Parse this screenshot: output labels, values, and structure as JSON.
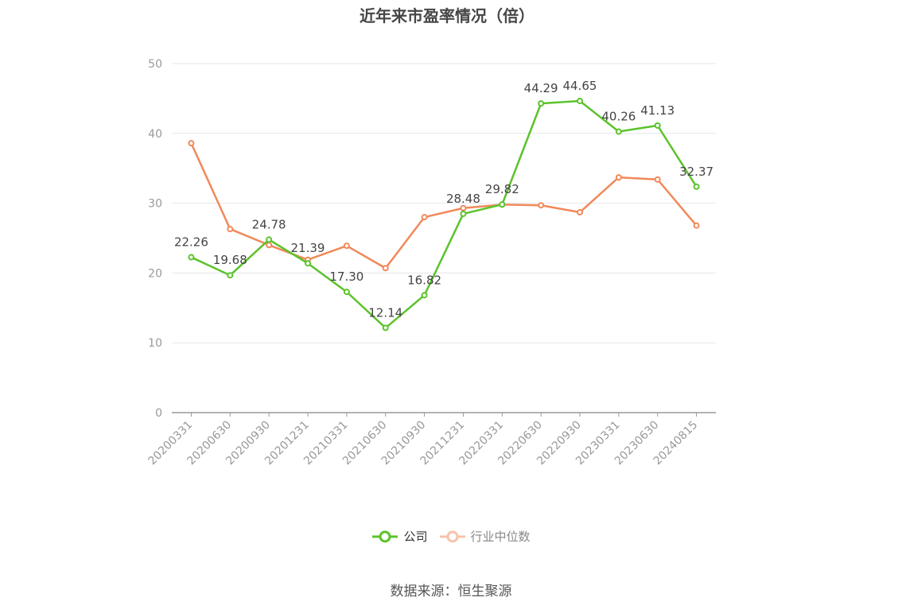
{
  "chart_data": {
    "type": "line",
    "title": "近年来市盈率情况（倍）",
    "categories": [
      "20200331",
      "20200630",
      "20200930",
      "20201231",
      "20210331",
      "20210630",
      "20210930",
      "20211231",
      "20220331",
      "20220630",
      "20220930",
      "20230331",
      "20230630",
      "20240815"
    ],
    "series": [
      {
        "name": "公司",
        "color": "#5bc32b",
        "values": [
          22.26,
          19.68,
          24.78,
          21.39,
          17.3,
          12.14,
          16.82,
          28.48,
          29.82,
          44.29,
          44.65,
          40.26,
          41.13,
          32.37
        ],
        "labels": [
          "22.26",
          "19.68",
          "24.78",
          "21.39",
          "17.30",
          "12.14",
          "16.82",
          "28.48",
          "29.82",
          "44.29",
          "44.65",
          "40.26",
          "41.13",
          "32.37"
        ]
      },
      {
        "name": "行业中位数",
        "color": "#f0895a",
        "values": [
          38.6,
          26.3,
          24.0,
          21.9,
          23.9,
          20.7,
          28.0,
          29.3,
          29.8,
          29.7,
          28.7,
          33.7,
          33.4,
          26.8
        ]
      }
    ],
    "yticks": [
      "0",
      "10",
      "20",
      "30",
      "40",
      "50"
    ],
    "ylim": [
      0,
      50
    ],
    "grid": true,
    "legend_position": "bottom-center"
  },
  "legend": {
    "company": "公司",
    "industry": "行业中位数"
  },
  "footer": {
    "source": "数据来源：恒生聚源"
  }
}
